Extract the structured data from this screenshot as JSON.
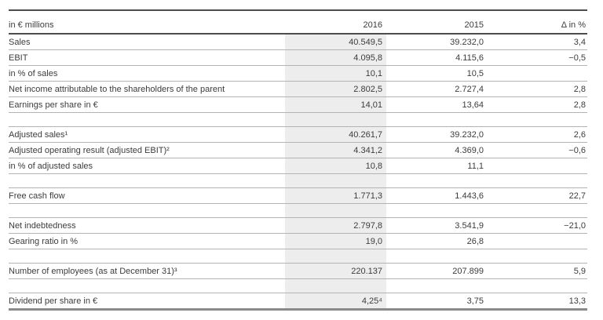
{
  "table": {
    "unit_label": "in € millions",
    "columns": [
      "2016",
      "2015",
      "Δ in %"
    ],
    "shaded_column_color": "#ededed",
    "text_color": "#3c3c3c",
    "rows": [
      {
        "type": "data",
        "label": "Sales",
        "y2016": "40.549,5",
        "y2015": "39.232,0",
        "delta": "3,4"
      },
      {
        "type": "data",
        "label": "EBIT",
        "y2016": "4.095,8",
        "y2015": "4.115,6",
        "delta": "−0,5"
      },
      {
        "type": "data",
        "label": "in % of sales",
        "y2016": "10,1",
        "y2015": "10,5",
        "delta": ""
      },
      {
        "type": "data",
        "label": "Net income attributable to the shareholders of the parent",
        "y2016": "2.802,5",
        "y2015": "2.727,4",
        "delta": "2,8"
      },
      {
        "type": "data",
        "label": "Earnings per share in €",
        "y2016": "14,01",
        "y2015": "13,64",
        "delta": "2,8"
      },
      {
        "type": "spacer",
        "label": "",
        "y2016": "",
        "y2015": "",
        "delta": ""
      },
      {
        "type": "data",
        "label": "Adjusted sales¹",
        "y2016": "40.261,7",
        "y2015": "39.232,0",
        "delta": "2,6"
      },
      {
        "type": "data",
        "label": "Adjusted operating result (adjusted EBIT)²",
        "y2016": "4.341,2",
        "y2015": "4.369,0",
        "delta": "−0,6"
      },
      {
        "type": "data",
        "label": "in % of adjusted sales",
        "y2016": "10,8",
        "y2015": "11,1",
        "delta": ""
      },
      {
        "type": "spacer",
        "label": "",
        "y2016": "",
        "y2015": "",
        "delta": ""
      },
      {
        "type": "data",
        "label": "Free cash flow",
        "y2016": "1.771,3",
        "y2015": "1.443,6",
        "delta": "22,7"
      },
      {
        "type": "spacer",
        "label": "",
        "y2016": "",
        "y2015": "",
        "delta": ""
      },
      {
        "type": "data",
        "label": "Net indebtedness",
        "y2016": "2.797,8",
        "y2015": "3.541,9",
        "delta": "−21,0"
      },
      {
        "type": "data",
        "label": "Gearing ratio in %",
        "y2016": "19,0",
        "y2015": "26,8",
        "delta": ""
      },
      {
        "type": "spacer",
        "label": "",
        "y2016": "",
        "y2015": "",
        "delta": ""
      },
      {
        "type": "data",
        "label": "Number of employees (as at December 31)³",
        "y2016": "220.137",
        "y2015": "207.899",
        "delta": "5,9"
      },
      {
        "type": "spacer",
        "label": "",
        "y2016": "",
        "y2015": "",
        "delta": ""
      },
      {
        "type": "data",
        "label": "Dividend per share in €",
        "y2016": "4,25⁴",
        "y2015": "3,75",
        "delta": "13,3"
      }
    ]
  }
}
